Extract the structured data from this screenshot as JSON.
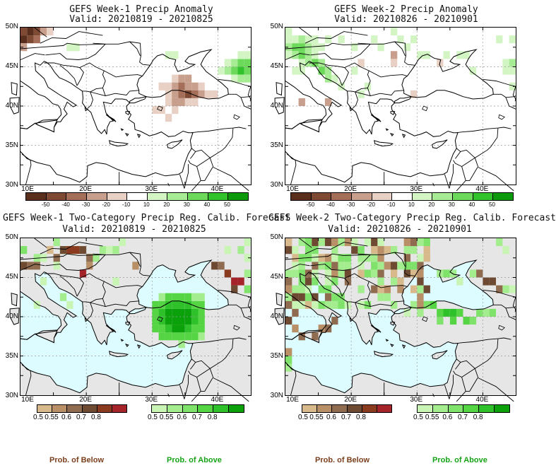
{
  "panels": [
    {
      "id": "p1",
      "title": "GEFS Week-1 Precip Anomaly",
      "valid": "Valid: 20210819 - 20210825",
      "type": "anomaly"
    },
    {
      "id": "p2",
      "title": "GEFS Week-2 Precip Anomaly",
      "valid": "Valid: 20210826 - 20210901",
      "type": "anomaly"
    },
    {
      "id": "p3",
      "title": "GEFS Week-1 Two-Category Precip Reg. Calib. Forecast",
      "valid": "Valid: 20210819 - 20210825",
      "type": "prob"
    },
    {
      "id": "p4",
      "title": "GEFS Week-2 Two-Category Precip Reg. Calib. Forecast",
      "valid": "Valid: 20210826 - 20210901",
      "type": "prob"
    }
  ],
  "axes": {
    "lat_labels": [
      "50N",
      "45N",
      "40N",
      "35N",
      "30N"
    ],
    "lon_labels": [
      "10E",
      "20E",
      "30E",
      "40E"
    ]
  },
  "anomaly_colorbar": {
    "ticks": [
      "-50",
      "-40",
      "-30",
      "-20",
      "-10",
      "10",
      "20",
      "30",
      "40",
      "50"
    ],
    "colors": [
      "#5a2e1c",
      "#7f4a33",
      "#a56e58",
      "#c89e8c",
      "#e8d0c4",
      "#ffffff",
      "#d3f5c4",
      "#a7eb94",
      "#6cd95a",
      "#32c22c",
      "#0c9a0c"
    ]
  },
  "prob_colorbar": {
    "below_ticks": [
      "0.5",
      "0.55",
      "0.6",
      "0.7",
      "0.8"
    ],
    "above_ticks": [
      "0.5",
      "0.55",
      "0.6",
      "0.7",
      "0.8"
    ],
    "below_colors": [
      "#d7b98b",
      "#b88f66",
      "#8f6b4f",
      "#6e4a33",
      "#8a3a1e",
      "#a4242a"
    ],
    "above_colors": [
      "#c8f5b4",
      "#a4ed8e",
      "#7fe26a",
      "#55d444",
      "#2ec12a",
      "#0aa10a"
    ],
    "below_label": "Prob. of Below",
    "above_label": "Prob. of Above",
    "below_label_color": "#7b3f1d",
    "above_label_color": "#17a317"
  },
  "colors": {
    "land_anomaly": "#ffffff",
    "land_prob": "#e6e6e6",
    "sea_prob": "#dcfcff"
  }
}
